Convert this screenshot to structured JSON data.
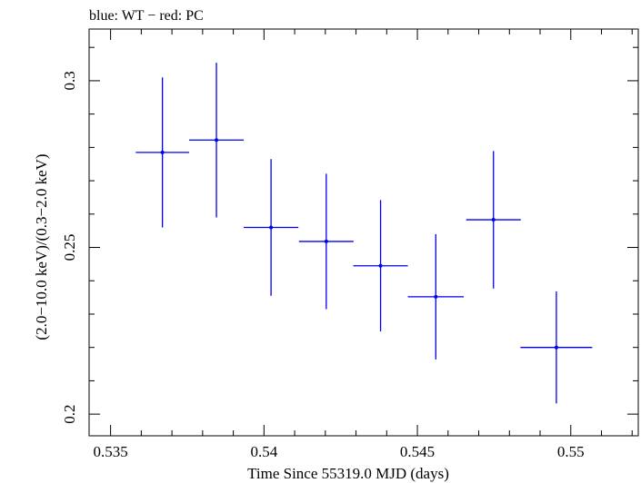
{
  "chart_data": {
    "type": "scatter",
    "title": "blue: WT − red: PC",
    "xlabel": "Time Since 55319.0 MJD (days)",
    "ylabel": "(2.0−10.0 keV)/(0.3−2.0 keV)",
    "xlim": [
      0.5343,
      0.5522
    ],
    "ylim": [
      0.1935,
      0.3155
    ],
    "x_ticks": [
      {
        "value": 0.535,
        "label": "0.535"
      },
      {
        "value": 0.54,
        "label": "0.54"
      },
      {
        "value": 0.545,
        "label": "0.545"
      },
      {
        "value": 0.55,
        "label": "0.55"
      }
    ],
    "y_ticks": [
      {
        "value": 0.2,
        "label": "0.2"
      },
      {
        "value": 0.25,
        "label": "0.25"
      },
      {
        "value": 0.3,
        "label": "0.3"
      }
    ],
    "grid": false,
    "series": [
      {
        "color": "#0000ee",
        "points": [
          {
            "x": 0.53669,
            "y": 0.2785,
            "xerr": 0.00087,
            "yerr": 0.0225
          },
          {
            "x": 0.53845,
            "y": 0.2822,
            "xerr": 0.00089,
            "yerr": 0.0232
          },
          {
            "x": 0.54023,
            "y": 0.256,
            "xerr": 0.00089,
            "yerr": 0.0205
          },
          {
            "x": 0.54203,
            "y": 0.2518,
            "xerr": 0.00089,
            "yerr": 0.0203
          },
          {
            "x": 0.5438,
            "y": 0.2445,
            "xerr": 0.00089,
            "yerr": 0.0197
          },
          {
            "x": 0.5456,
            "y": 0.2352,
            "xerr": 0.00091,
            "yerr": 0.0188
          },
          {
            "x": 0.54748,
            "y": 0.2583,
            "xerr": 0.00089,
            "yerr": 0.0206
          },
          {
            "x": 0.54953,
            "y": 0.22,
            "xerr": 0.00117,
            "yerr": 0.0168
          }
        ]
      }
    ]
  }
}
